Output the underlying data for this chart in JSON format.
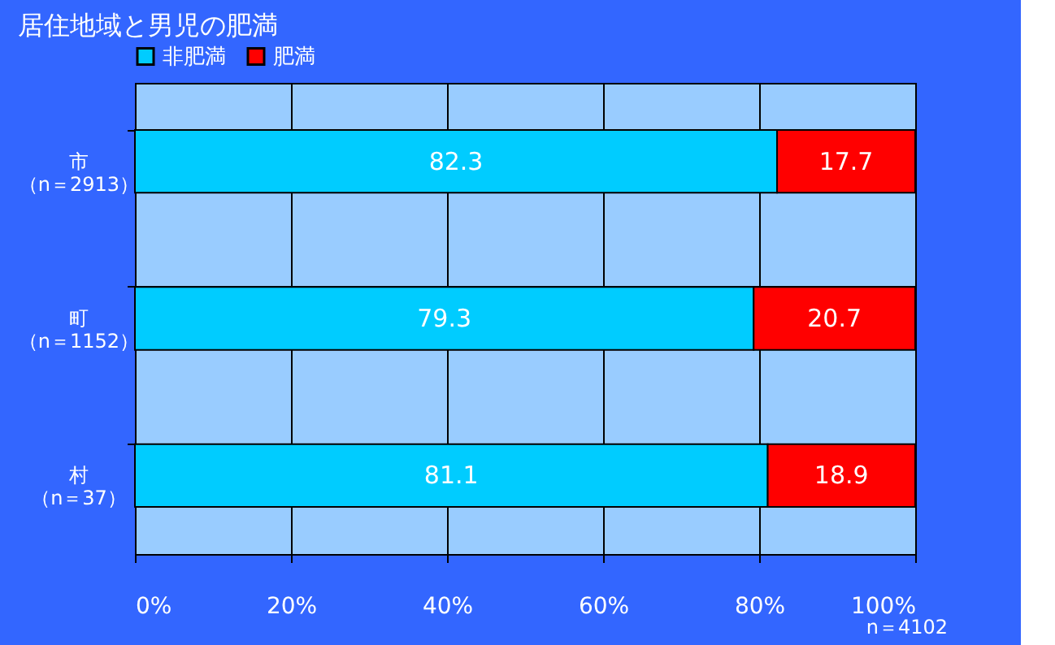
{
  "chart_data": {
    "type": "bar",
    "orientation": "horizontal",
    "stacked": true,
    "title": "居住地域と男児の肥満",
    "categories": [
      "市（n＝2913）",
      "町（n＝1152）",
      "村（n＝37）"
    ],
    "series": [
      {
        "name": "非肥満",
        "color": "#00ccff",
        "values": [
          82.3,
          79.3,
          81.1
        ]
      },
      {
        "name": "肥満",
        "color": "#ff0000",
        "values": [
          17.7,
          20.7,
          18.9
        ]
      }
    ],
    "xlim": [
      0,
      100
    ],
    "xticks": [
      {
        "value": 0,
        "label": "0%"
      },
      {
        "value": 20,
        "label": "20%"
      },
      {
        "value": 40,
        "label": "40%"
      },
      {
        "value": 60,
        "label": "60%"
      },
      {
        "value": 80,
        "label": "80%"
      },
      {
        "value": 100,
        "label": "100%"
      }
    ],
    "data_labels": true,
    "grid": true,
    "legend": "top",
    "annotations": [
      "n＝4102"
    ]
  }
}
